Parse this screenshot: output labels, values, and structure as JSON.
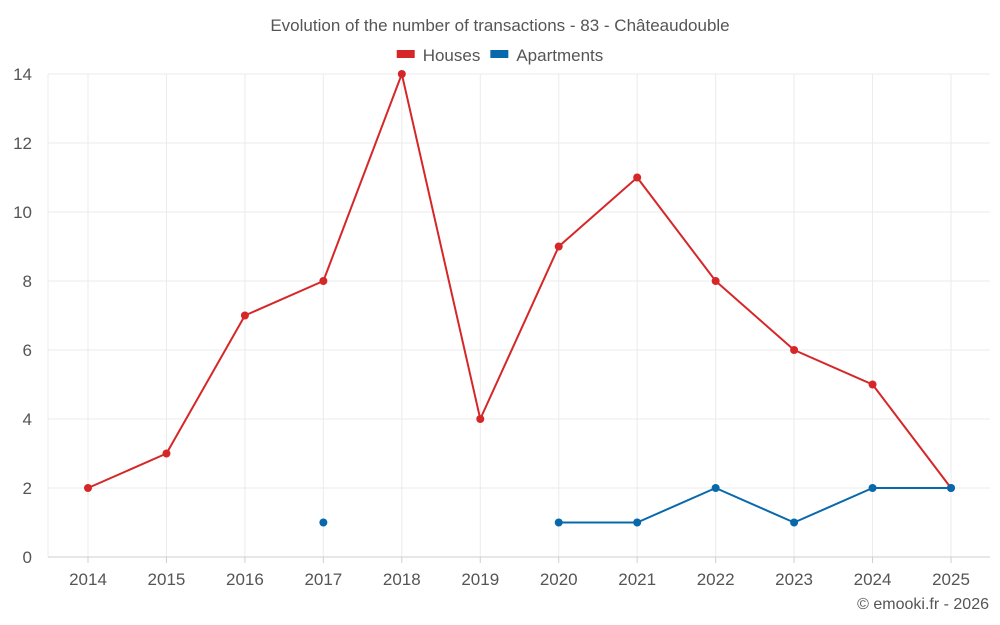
{
  "chart_data": {
    "type": "line",
    "title": "Evolution of the number of transactions - 83 - Châteaudouble",
    "categories": [
      "2014",
      "2015",
      "2016",
      "2017",
      "2018",
      "2019",
      "2020",
      "2021",
      "2022",
      "2023",
      "2024",
      "2025"
    ],
    "ylim": [
      0,
      14
    ],
    "yticks": [
      0,
      2,
      4,
      6,
      8,
      10,
      12,
      14
    ],
    "grid": true,
    "legend_position": "top-center",
    "series": [
      {
        "name": "Houses",
        "color": "#d62728",
        "values": [
          2,
          3,
          7,
          8,
          14,
          4,
          9,
          11,
          8,
          6,
          5,
          2
        ]
      },
      {
        "name": "Apartments",
        "color": "#0868ac",
        "values": [
          null,
          null,
          null,
          1,
          null,
          null,
          1,
          1,
          2,
          1,
          2,
          2
        ]
      }
    ]
  },
  "credit": "© emooki.fr - 2026"
}
